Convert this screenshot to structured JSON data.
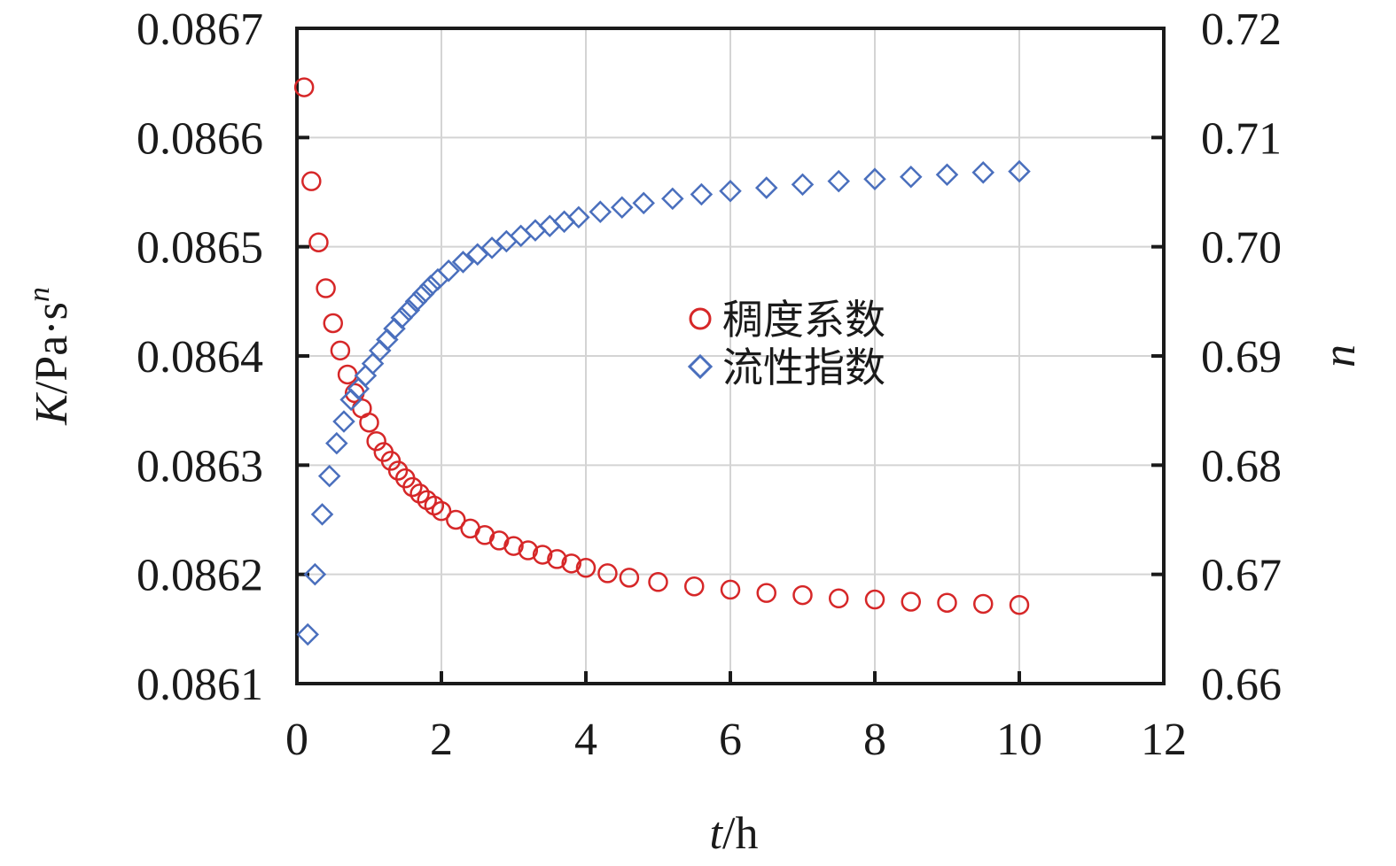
{
  "chart_data": {
    "type": "scatter",
    "x_axis": {
      "label_italic": "t",
      "label_rest": "/h",
      "range": [
        0,
        12
      ],
      "ticks": [
        "0",
        "2",
        "4",
        "6",
        "8",
        "10",
        "12"
      ]
    },
    "y_left": {
      "label_italic": "K",
      "label_mid": "/Pa·s",
      "label_sup": "n",
      "range": [
        0.0861,
        0.0867
      ],
      "ticks": [
        "0.0861",
        "0.0862",
        "0.0863",
        "0.0864",
        "0.0865",
        "0.0866",
        "0.0867"
      ]
    },
    "y_right": {
      "label_italic": "n",
      "range": [
        0.66,
        0.72
      ],
      "ticks": [
        "0.66",
        "0.67",
        "0.68",
        "0.69",
        "0.70",
        "0.71",
        "0.72"
      ]
    },
    "grid": true,
    "legend_position": "center",
    "series": [
      {
        "name": "稠度系数",
        "axis": "left",
        "marker": "circle",
        "color": "#d62728",
        "points": [
          [
            0.1,
            0.086646
          ],
          [
            0.2,
            0.08656
          ],
          [
            0.3,
            0.086504
          ],
          [
            0.4,
            0.086462
          ],
          [
            0.5,
            0.08643
          ],
          [
            0.6,
            0.086405
          ],
          [
            0.7,
            0.086383
          ],
          [
            0.8,
            0.086366
          ],
          [
            0.9,
            0.086352
          ],
          [
            1.0,
            0.086339
          ],
          [
            1.1,
            0.086322
          ],
          [
            1.2,
            0.086312
          ],
          [
            1.3,
            0.086304
          ],
          [
            1.4,
            0.086295
          ],
          [
            1.5,
            0.086288
          ],
          [
            1.6,
            0.08628
          ],
          [
            1.7,
            0.086274
          ],
          [
            1.8,
            0.086268
          ],
          [
            1.9,
            0.086263
          ],
          [
            2.0,
            0.086258
          ],
          [
            2.2,
            0.08625
          ],
          [
            2.4,
            0.086242
          ],
          [
            2.6,
            0.086236
          ],
          [
            2.8,
            0.086231
          ],
          [
            3.0,
            0.086226
          ],
          [
            3.2,
            0.086222
          ],
          [
            3.4,
            0.086218
          ],
          [
            3.6,
            0.086214
          ],
          [
            3.8,
            0.08621
          ],
          [
            4.0,
            0.086206
          ],
          [
            4.3,
            0.086201
          ],
          [
            4.6,
            0.086197
          ],
          [
            5.0,
            0.086193
          ],
          [
            5.5,
            0.086189
          ],
          [
            6.0,
            0.086186
          ],
          [
            6.5,
            0.086183
          ],
          [
            7.0,
            0.086181
          ],
          [
            7.5,
            0.086178
          ],
          [
            8.0,
            0.086177
          ],
          [
            8.5,
            0.086175
          ],
          [
            9.0,
            0.086174
          ],
          [
            9.5,
            0.086173
          ],
          [
            10.0,
            0.086172
          ]
        ]
      },
      {
        "name": "流性指数",
        "axis": "right",
        "marker": "diamond",
        "color": "#4a6fbd",
        "points": [
          [
            0.15,
            0.6645
          ],
          [
            0.25,
            0.67
          ],
          [
            0.35,
            0.6755
          ],
          [
            0.45,
            0.679
          ],
          [
            0.55,
            0.682
          ],
          [
            0.65,
            0.684
          ],
          [
            0.75,
            0.686
          ],
          [
            0.85,
            0.687
          ],
          [
            0.95,
            0.6882
          ],
          [
            1.05,
            0.6893
          ],
          [
            1.15,
            0.6905
          ],
          [
            1.25,
            0.6915
          ],
          [
            1.35,
            0.6925
          ],
          [
            1.45,
            0.6935
          ],
          [
            1.55,
            0.6942
          ],
          [
            1.65,
            0.695
          ],
          [
            1.75,
            0.6957
          ],
          [
            1.85,
            0.6964
          ],
          [
            1.95,
            0.697
          ],
          [
            2.1,
            0.6978
          ],
          [
            2.3,
            0.6986
          ],
          [
            2.5,
            0.6993
          ],
          [
            2.7,
            0.6999
          ],
          [
            2.9,
            0.7005
          ],
          [
            3.1,
            0.701
          ],
          [
            3.3,
            0.7015
          ],
          [
            3.5,
            0.7019
          ],
          [
            3.7,
            0.7023
          ],
          [
            3.9,
            0.7027
          ],
          [
            4.2,
            0.7032
          ],
          [
            4.5,
            0.7036
          ],
          [
            4.8,
            0.704
          ],
          [
            5.2,
            0.7044
          ],
          [
            5.6,
            0.7048
          ],
          [
            6.0,
            0.7051
          ],
          [
            6.5,
            0.7054
          ],
          [
            7.0,
            0.7057
          ],
          [
            7.5,
            0.706
          ],
          [
            8.0,
            0.7062
          ],
          [
            8.5,
            0.7064
          ],
          [
            9.0,
            0.7066
          ],
          [
            9.5,
            0.7068
          ],
          [
            10.0,
            0.7069
          ]
        ]
      }
    ]
  }
}
